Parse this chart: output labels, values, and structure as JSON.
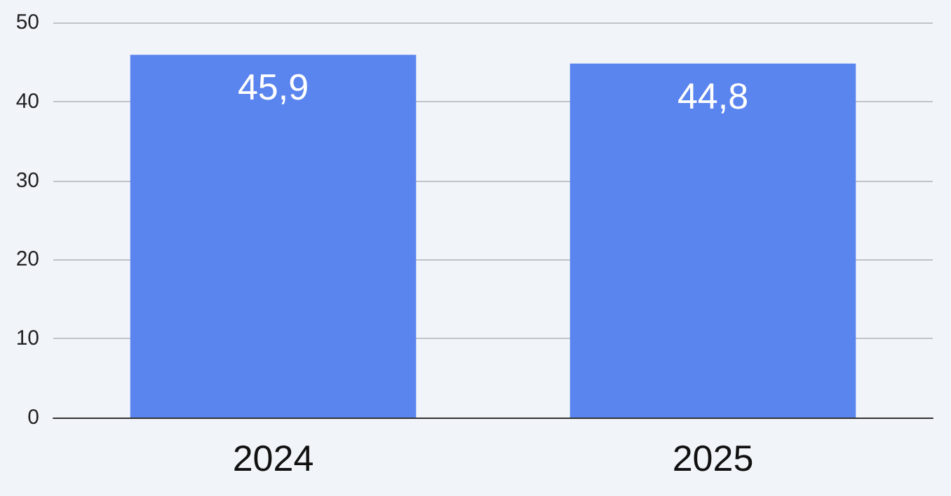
{
  "chart_data": {
    "type": "bar",
    "categories": [
      "2024",
      "2025"
    ],
    "values": [
      45.9,
      44.8
    ],
    "value_labels": [
      "45,9",
      "44,8"
    ],
    "color": "#5a84ee",
    "ylim": [
      0,
      50
    ],
    "yticks": [
      0,
      10,
      20,
      30,
      40,
      50
    ],
    "grid": "y"
  }
}
